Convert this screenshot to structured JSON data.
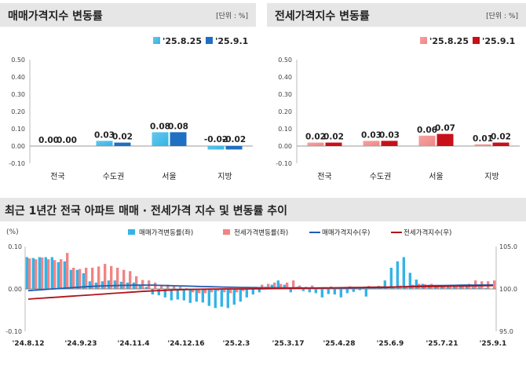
{
  "panels": {
    "left": {
      "title": "매매가격지수 변동률",
      "unit": "[단위 : %]"
    },
    "right": {
      "title": "전세가격지수 변동률",
      "unit": "[단위 : %]"
    },
    "bottom": {
      "title": "최근 1년간 전국 아파트 매매 · 전세가격 지수 및 변동률 추이"
    }
  },
  "colors": {
    "sale_light": "#33b4e6",
    "sale_dark": "#1f6fc2",
    "rent_light": "#f28484",
    "rent_dark": "#c9101a",
    "sale_line": "#1f5fb0",
    "rent_line": "#b2121a"
  },
  "chart_data": [
    {
      "id": "sale",
      "type": "bar",
      "categories": [
        "전국",
        "수도권",
        "서울",
        "지방"
      ],
      "series": [
        {
          "name": "'25.8.25",
          "values": [
            0.0,
            0.03,
            0.08,
            -0.02
          ],
          "labels": [
            "0.00",
            "0.03",
            "0.08",
            "-0.02"
          ]
        },
        {
          "name": "'25.9.1",
          "values": [
            0.0,
            0.02,
            0.08,
            -0.02
          ],
          "labels": [
            "0.00",
            "0.02",
            "0.08",
            "-0.02"
          ]
        }
      ],
      "ylim": [
        -0.1,
        0.5
      ],
      "yticks": [
        "-0.10",
        "0.00",
        "0.10",
        "0.20",
        "0.30",
        "0.40",
        "0.50"
      ],
      "legend": "top-right"
    },
    {
      "id": "rent",
      "type": "bar",
      "categories": [
        "전국",
        "수도권",
        "서울",
        "지방"
      ],
      "series": [
        {
          "name": "'25.8.25",
          "values": [
            0.02,
            0.03,
            0.06,
            0.01
          ],
          "labels": [
            "0.02",
            "0.03",
            "0.06",
            "0.01"
          ]
        },
        {
          "name": "'25.9.1",
          "values": [
            0.02,
            0.03,
            0.07,
            0.02
          ],
          "labels": [
            "0.02",
            "0.03",
            "0.07",
            "0.02"
          ]
        }
      ],
      "ylim": [
        -0.1,
        0.5
      ],
      "yticks": [
        "-0.10",
        "0.00",
        "0.10",
        "0.20",
        "0.30",
        "0.40",
        "0.50"
      ],
      "legend": "top-right"
    },
    {
      "id": "trend",
      "type": "bar",
      "ylabel": "(%)",
      "ylim": [
        -0.1,
        0.1
      ],
      "yticks_left": [
        "0.10",
        "0.00",
        "-0.10"
      ],
      "y2lim": [
        95.0,
        105.0
      ],
      "yticks_right": [
        "105.0",
        "100.0",
        "95.0"
      ],
      "x_tick_labels": [
        "'24.8.12",
        "'24.9.23",
        "'24.11.4",
        "'24.12.16",
        "'25.2.3",
        "'25.3.17",
        "'25.4.28",
        "'25.6.9",
        "'25.7.21",
        "'25.9.1"
      ],
      "legend": "top",
      "series": [
        {
          "name": "매매가격변동률(좌)",
          "kind": "bar",
          "axis": "left",
          "values": [
            0.075,
            0.073,
            0.075,
            0.075,
            0.075,
            0.063,
            0.065,
            0.045,
            0.045,
            0.037,
            0.018,
            0.015,
            0.018,
            0.02,
            0.02,
            0.017,
            0.015,
            0.015,
            0.01,
            0.005,
            -0.013,
            -0.015,
            -0.02,
            -0.027,
            -0.025,
            -0.027,
            -0.033,
            -0.03,
            -0.032,
            -0.04,
            -0.045,
            -0.042,
            -0.045,
            -0.037,
            -0.03,
            -0.02,
            -0.013,
            -0.008,
            0.005,
            0.01,
            0.02,
            0.01,
            -0.008,
            0.005,
            -0.005,
            -0.008,
            -0.01,
            -0.02,
            -0.012,
            -0.013,
            -0.02,
            -0.01,
            -0.007,
            -0.003,
            -0.018,
            0.005,
            0.007,
            0.02,
            0.05,
            0.065,
            0.075,
            0.038,
            0.022,
            0.012,
            0.01,
            0.008,
            0.005,
            0.005,
            0.008,
            0.01,
            0.008,
            0.005,
            0.005,
            0.002,
            0.0
          ]
        },
        {
          "name": "전세가격변동률(좌)",
          "kind": "bar",
          "axis": "left",
          "values": [
            0.072,
            0.07,
            0.074,
            0.07,
            0.068,
            0.07,
            0.085,
            0.05,
            0.047,
            0.05,
            0.05,
            0.053,
            0.059,
            0.054,
            0.05,
            0.045,
            0.042,
            0.03,
            0.021,
            0.02,
            0.015,
            0.01,
            0.01,
            0.008,
            0.005,
            0.002,
            -0.008,
            -0.01,
            -0.01,
            -0.008,
            -0.005,
            -0.008,
            -0.01,
            -0.008,
            -0.005,
            0.002,
            0.005,
            0.01,
            0.012,
            0.015,
            0.012,
            0.015,
            0.02,
            0.008,
            0.005,
            0.008,
            0.004,
            0.004,
            0.006,
            0.003,
            0.003,
            0.006,
            0.004,
            0.004,
            0.007,
            0.004,
            0.004,
            0.004,
            0.005,
            0.008,
            0.006,
            0.01,
            0.012,
            0.011,
            0.012,
            0.008,
            0.009,
            0.008,
            0.01,
            0.01,
            0.012,
            0.02,
            0.018,
            0.018,
            0.02
          ]
        },
        {
          "name": "매매가격지수(우)",
          "kind": "line",
          "axis": "right",
          "values": [
            99.8,
            99.85,
            99.9,
            99.95,
            100.0,
            100.05,
            100.1,
            100.15,
            100.2,
            100.25,
            100.3,
            100.33,
            100.36,
            100.38,
            100.4,
            100.42,
            100.43,
            100.44,
            100.45,
            100.45,
            100.44,
            100.42,
            100.4,
            100.38,
            100.36,
            100.34,
            100.32,
            100.3,
            100.28,
            100.26,
            100.24,
            100.22,
            100.2,
            100.19,
            100.18,
            100.17,
            100.16,
            100.15,
            100.14,
            100.14,
            100.13,
            100.13,
            100.12,
            100.12,
            100.11,
            100.11,
            100.1,
            100.1,
            100.1,
            100.1,
            100.1,
            100.11,
            100.12,
            100.13,
            100.14,
            100.15,
            100.16,
            100.17,
            100.2,
            100.23,
            100.27,
            100.3,
            100.33,
            100.36,
            100.38,
            100.4,
            100.41,
            100.42,
            100.43,
            100.44,
            100.45,
            100.45,
            100.46,
            100.46,
            100.47
          ]
        },
        {
          "name": "전세가격지수(우)",
          "kind": "line",
          "axis": "right",
          "values": [
            98.8,
            98.85,
            98.9,
            98.95,
            99.0,
            99.05,
            99.1,
            99.15,
            99.2,
            99.25,
            99.3,
            99.35,
            99.4,
            99.45,
            99.5,
            99.55,
            99.6,
            99.65,
            99.7,
            99.74,
            99.78,
            99.81,
            99.84,
            99.87,
            99.9,
            99.92,
            99.94,
            99.96,
            99.97,
            99.98,
            99.99,
            100.0,
            100.0,
            100.0,
            100.0,
            100.0,
            100.01,
            100.02,
            100.03,
            100.04,
            100.05,
            100.06,
            100.07,
            100.08,
            100.09,
            100.1,
            100.11,
            100.12,
            100.13,
            100.14,
            100.15,
            100.16,
            100.17,
            100.18,
            100.19,
            100.2,
            100.21,
            100.22,
            100.23,
            100.24,
            100.25,
            100.26,
            100.27,
            100.28,
            100.29,
            100.3,
            100.31,
            100.32,
            100.33,
            100.34,
            100.35,
            100.36,
            100.37,
            100.38,
            100.4
          ]
        }
      ]
    }
  ]
}
